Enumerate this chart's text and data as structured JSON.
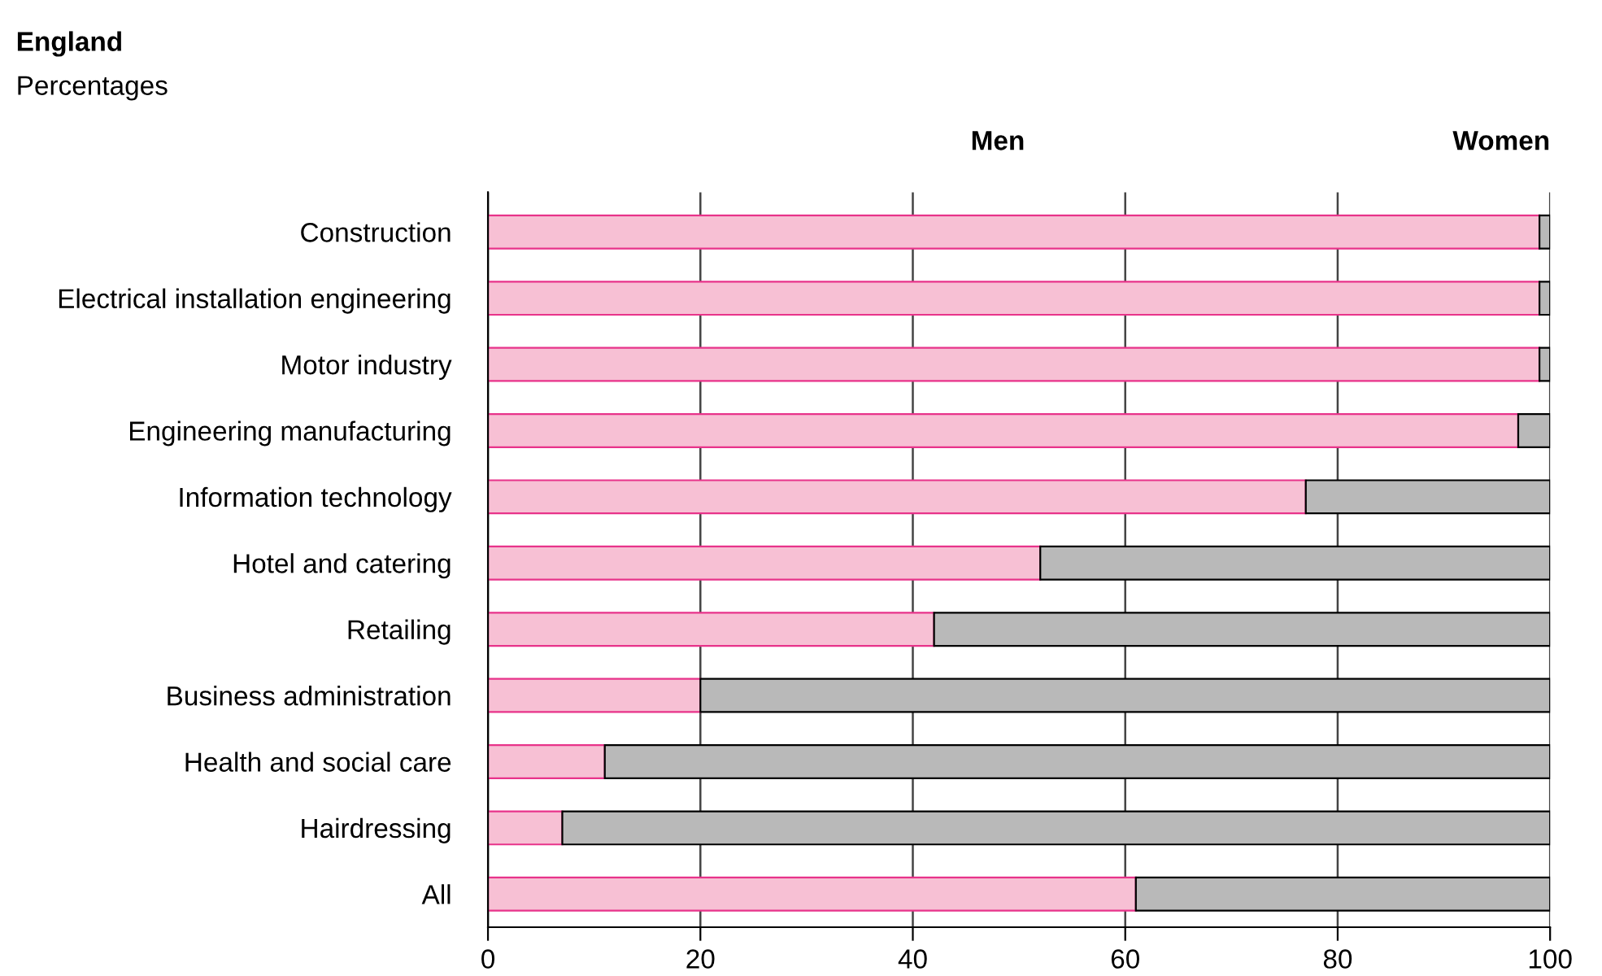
{
  "chart_data": {
    "type": "bar",
    "orientation": "horizontal",
    "stacked": true,
    "title": "England",
    "subtitle": "Percentages",
    "categories": [
      "Construction",
      "Electrical installation engineering",
      "Motor industry",
      "Engineering manufacturing",
      "Information technology",
      "Hotel and catering",
      "Retailing",
      "Business administration",
      "Health and social care",
      "Hairdressing",
      "All"
    ],
    "series": [
      {
        "name": "Men",
        "color": "#f7c0d4",
        "values": [
          99,
          99,
          99,
          97,
          77,
          52,
          42,
          20,
          11,
          7,
          61
        ]
      },
      {
        "name": "Women",
        "color": "#b9b9b9",
        "values": [
          1,
          1,
          1,
          3,
          23,
          48,
          58,
          80,
          89,
          93,
          39
        ]
      }
    ],
    "xlim": [
      0,
      100
    ],
    "xticks": [
      0,
      20,
      40,
      60,
      80,
      100
    ],
    "grid": "x",
    "legend": "top"
  }
}
